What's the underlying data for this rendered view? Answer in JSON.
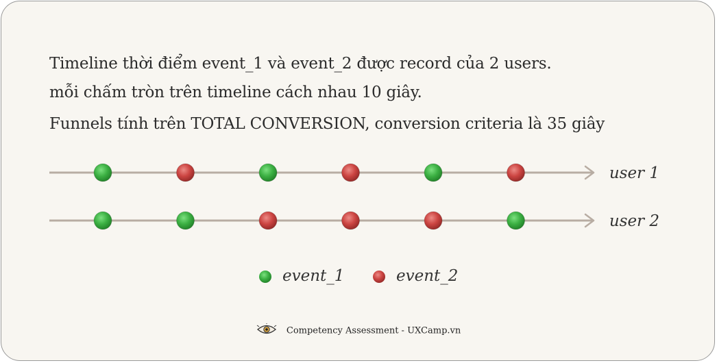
{
  "description": {
    "line1": "Timeline thời điểm event_1 và event_2 được record của 2 users.",
    "line2": "mỗi chấm tròn trên timeline cách nhau 10 giây.",
    "line3": "Funnels tính trên TOTAL CONVERSION, conversion criteria là 35 giây"
  },
  "timelines": [
    {
      "user": "user 1",
      "events": [
        "event_1",
        "event_2",
        "event_1",
        "event_2",
        "event_1",
        "event_2"
      ]
    },
    {
      "user": "user 2",
      "events": [
        "event_1",
        "event_1",
        "event_2",
        "event_2",
        "event_2",
        "event_1"
      ]
    }
  ],
  "legend": [
    {
      "key": "event_1",
      "label": "event_1",
      "color": "#3cb043"
    },
    {
      "key": "event_2",
      "label": "event_2",
      "color": "#c94040"
    }
  ],
  "colors": {
    "axis": "#b8ada3",
    "event_1": "#3cb043",
    "event_2": "#c94040"
  },
  "footer": {
    "text": "Competency Assessment - UXCamp.vn",
    "icon": "eye-icon"
  }
}
